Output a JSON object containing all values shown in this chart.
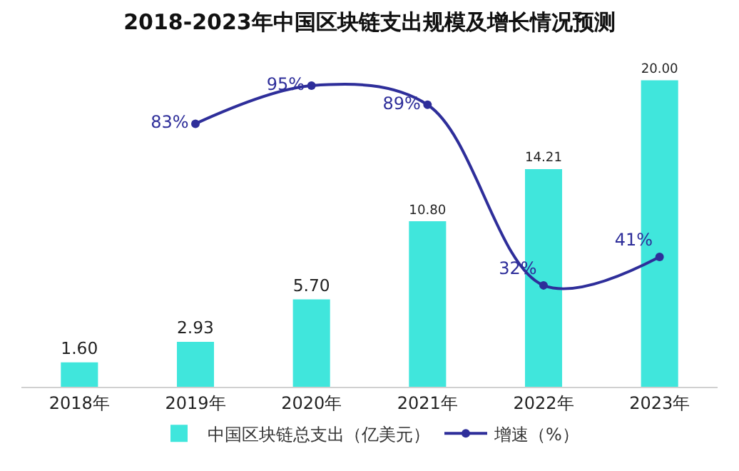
{
  "chart_data": {
    "type": "bar",
    "title": "2018-2023年中国区块链支出规模及增长情况预测",
    "categories": [
      "2018年",
      "2019年",
      "2020年",
      "2021年",
      "2022年",
      "2023年"
    ],
    "series": [
      {
        "name": "中国区块链总支出（亿美元）",
        "color": "#40e6dc",
        "values": [
          1.6,
          2.93,
          5.7,
          10.8,
          14.21,
          20.0
        ],
        "value_labels": [
          "1.60",
          "2.93",
          "5.70",
          "10.80",
          "14.21",
          "20.00"
        ]
      },
      {
        "name": "增速（%）",
        "type": "line",
        "axis": "y2",
        "color": "#2e2e9a",
        "marker": "circle",
        "values": [
          null,
          83,
          95,
          89,
          32,
          41
        ],
        "value_labels": [
          null,
          "83%",
          "95%",
          "89%",
          "32%",
          "41%"
        ]
      }
    ],
    "tick_labels": "x",
    "legend": "bottom"
  }
}
